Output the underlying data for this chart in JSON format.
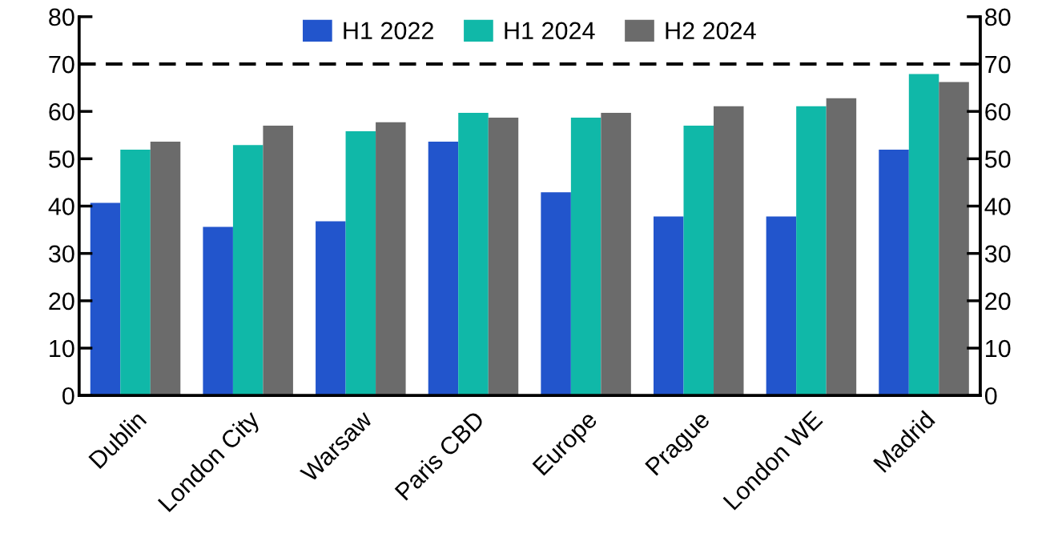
{
  "chart_data": {
    "type": "bar",
    "categories": [
      "Dublin",
      "London City",
      "Warsaw",
      "Paris CBD",
      "Europe",
      "Prague",
      "London WE",
      "Madrid"
    ],
    "series": [
      {
        "name": "H1 2022",
        "color": "#2255cc",
        "values": [
          40.7,
          35.6,
          36.8,
          53.6,
          42.9,
          37.8,
          37.8,
          51.9
        ]
      },
      {
        "name": "H1 2024",
        "color": "#10b8a8",
        "values": [
          51.9,
          52.9,
          55.8,
          59.7,
          58.7,
          57.0,
          61.1,
          67.9
        ]
      },
      {
        "name": "H2 2024",
        "color": "#6b6b6b",
        "values": [
          53.6,
          57.0,
          57.7,
          58.7,
          59.7,
          61.1,
          62.8,
          66.2
        ]
      }
    ],
    "ylim": [
      0,
      80
    ],
    "yticks": [
      0,
      10,
      20,
      30,
      40,
      50,
      60,
      70,
      80
    ],
    "y2lim": [
      0,
      80
    ],
    "y2ticks": [
      0,
      10,
      20,
      30,
      40,
      50,
      60,
      70,
      80
    ],
    "ref_lines": [
      {
        "axis": "y",
        "value": 70,
        "color": "#000000",
        "line_style": "dashed"
      }
    ],
    "grid": false,
    "legend": "top"
  }
}
